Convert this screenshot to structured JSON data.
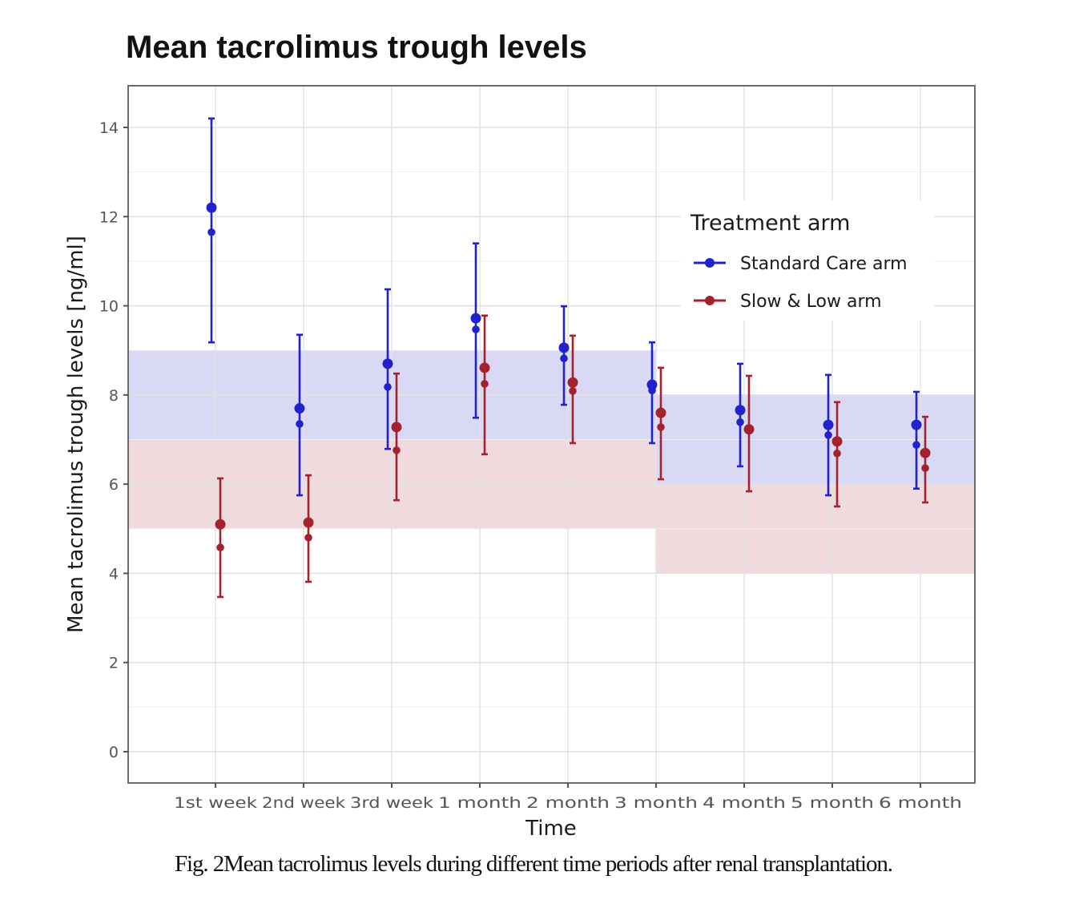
{
  "caption": "Fig. 2Mean tacrolimus levels during different time periods after renal transplantation.",
  "chart_data": {
    "type": "errorbar",
    "title": "Mean tacrolimus trough levels",
    "xlabel": "Time",
    "ylabel": "Mean tacrolimus trough levels [ng/ml]",
    "ylim": [
      -0.7,
      14.93
    ],
    "yticks": [
      0,
      2,
      4,
      6,
      8,
      10,
      12,
      14
    ],
    "ytick_labels": [
      "0",
      "2",
      "4",
      "6",
      "8",
      "10",
      "12",
      "14"
    ],
    "grid": true,
    "categories": [
      "1st week",
      "2nd week",
      "3rd week",
      "1 month",
      "2 month",
      "3 month",
      "4 month",
      "5 month",
      "6 month"
    ],
    "legend": {
      "title": "Treatment arm",
      "position": "top-right"
    },
    "series": [
      {
        "name": "Standard Care arm",
        "color": "#2222cc",
        "mean": [
          12.2,
          7.7,
          8.7,
          9.72,
          9.06,
          8.23,
          7.66,
          7.33,
          7.33
        ],
        "median": [
          11.65,
          7.35,
          8.18,
          9.47,
          8.82,
          8.1,
          7.39,
          7.1,
          6.88
        ],
        "upper": [
          14.2,
          9.35,
          10.37,
          11.4,
          9.99,
          9.18,
          8.7,
          8.45,
          8.07
        ],
        "lower": [
          9.18,
          5.75,
          6.79,
          7.49,
          7.78,
          6.92,
          6.4,
          5.75,
          5.9
        ]
      },
      {
        "name": "Slow & Low arm",
        "color": "#a3222e",
        "mean": [
          5.1,
          5.14,
          7.28,
          8.61,
          8.28,
          7.6,
          7.23,
          6.96,
          6.7
        ],
        "median": [
          4.58,
          4.8,
          6.76,
          8.25,
          8.09,
          7.28,
          7.2,
          6.69,
          6.36
        ],
        "upper": [
          6.13,
          6.2,
          8.48,
          9.78,
          9.33,
          8.61,
          8.43,
          7.84,
          7.51
        ],
        "lower": [
          3.47,
          3.81,
          5.64,
          6.67,
          6.92,
          6.11,
          5.84,
          5.5,
          5.59
        ]
      }
    ],
    "target_bands": [
      {
        "series": "Standard Care arm",
        "from_category": "start",
        "to_category": "3 month",
        "ymin": 7,
        "ymax": 9,
        "color": "#d2d2f4"
      },
      {
        "series": "Standard Care arm",
        "from_category": "3 month",
        "to_category": "end",
        "ymin": 6,
        "ymax": 8,
        "color": "#d2d2f4"
      },
      {
        "series": "Slow & Low arm",
        "from_category": "start",
        "to_category": "3 month",
        "ymin": 5,
        "ymax": 7,
        "color": "#efd4d8"
      },
      {
        "series": "Slow & Low arm",
        "from_category": "3 month",
        "to_category": "end",
        "ymin": 4,
        "ymax": 6,
        "color": "#efd4d8"
      }
    ]
  }
}
